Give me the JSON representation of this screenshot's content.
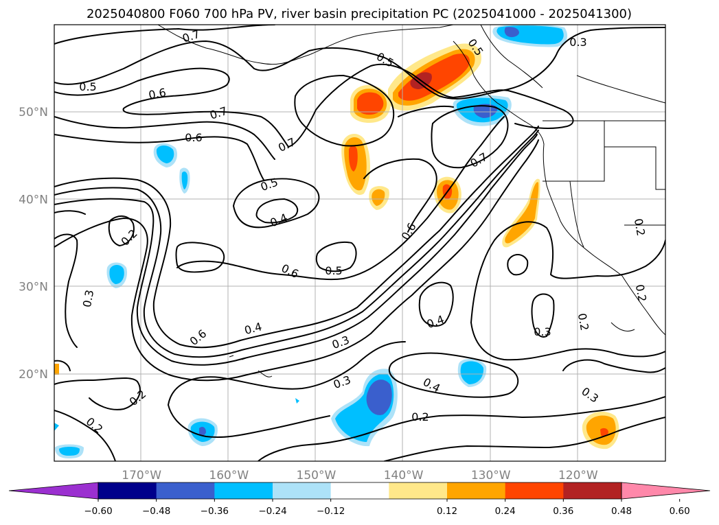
{
  "title": "2025040800 F060 700 hPa PV, river basin precipitation PC (2025041000 - 2025041300)",
  "map": {
    "lon_ticks": [
      {
        "label": "170°W",
        "lon": -170
      },
      {
        "label": "160°W",
        "lon": -160
      },
      {
        "label": "150°W",
        "lon": -150
      },
      {
        "label": "140°W",
        "lon": -140
      },
      {
        "label": "130°W",
        "lon": -130
      },
      {
        "label": "120°W",
        "lon": -120
      }
    ],
    "lat_ticks": [
      {
        "label": "50°N",
        "lat": 50
      },
      {
        "label": "40°N",
        "lat": 40
      },
      {
        "label": "30°N",
        "lat": 30
      },
      {
        "label": "20°N",
        "lat": 20
      }
    ],
    "lon_range": [
      -180,
      -110
    ],
    "lat_range": [
      10,
      60
    ]
  },
  "contour_labels": [
    "0.7",
    "0.5",
    "0.6",
    "0.7",
    "0.6",
    "0.5",
    "0.3",
    "0.5",
    "0.7",
    "0.5",
    "0.4",
    "0.7",
    "0.6",
    "0.2",
    "0.6",
    "0.5",
    "0.3",
    "0.4",
    "0.6",
    "0.4",
    "0.3",
    "0.3",
    "0.2",
    "0.2",
    "0.3",
    "0.4",
    "0.2",
    "0.3",
    "0.2",
    "0.2",
    "0.2"
  ],
  "colorbar": {
    "ticks": [
      "−0.60",
      "−0.48",
      "−0.36",
      "−0.24",
      "−0.12",
      "0.12",
      "0.24",
      "0.36",
      "0.48",
      "0.60"
    ],
    "colors": [
      "#9b30d0",
      "#00008b",
      "#3a5fcd",
      "#00bfff",
      "#ade2f8",
      "#ffffff",
      "#ffe88a",
      "#ffa500",
      "#ff4500",
      "#b22222",
      "#ff88aa"
    ]
  },
  "shading_colors": {
    "light_blue": "#ade2f8",
    "blue": "#00bfff",
    "dark_blue": "#3a5fcd",
    "yellow": "#ffe88a",
    "orange": "#ffa500",
    "red_orange": "#ff4500",
    "dark_red": "#b22222"
  }
}
